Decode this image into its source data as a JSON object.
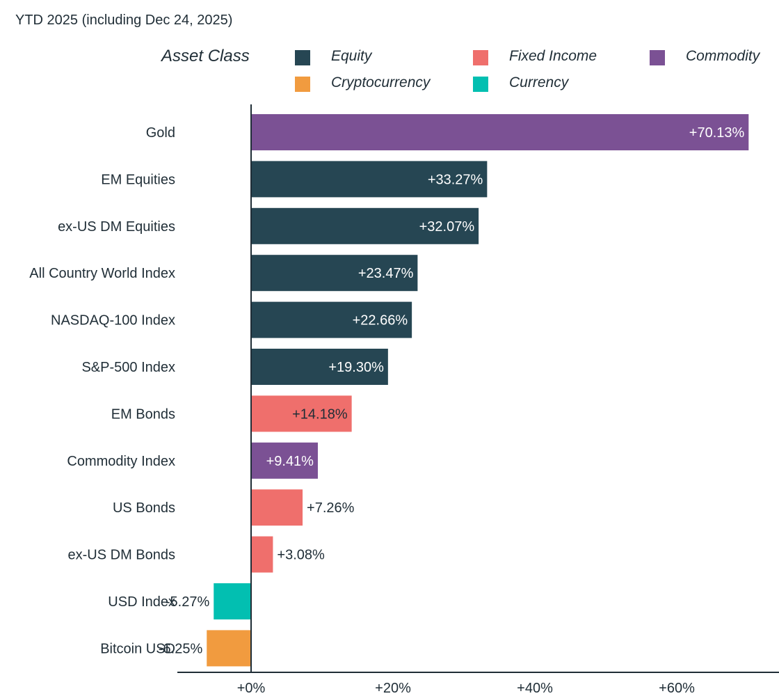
{
  "chart_data": {
    "type": "bar",
    "orientation": "horizontal",
    "title": "YTD 2025 (including Dec 24, 2025)",
    "xlabel": "",
    "ylabel": "",
    "xlim": [
      -10,
      74
    ],
    "xticks": [
      0,
      20,
      40,
      60
    ],
    "xtick_labels": [
      "+0%",
      "+20%",
      "+40%",
      "+60%"
    ],
    "grid": false,
    "legend": {
      "title": "Asset Class",
      "placement": "top",
      "entries": [
        {
          "name": "Equity",
          "color": "#264653"
        },
        {
          "name": "Fixed Income",
          "color": "#ef6f6c"
        },
        {
          "name": "Commodity",
          "color": "#7b5194"
        },
        {
          "name": "Cryptocurrency",
          "color": "#f19b3f"
        },
        {
          "name": "Currency",
          "color": "#02bfb1"
        }
      ]
    },
    "categories": [
      "Gold",
      "EM Equities",
      "ex-US DM Equities",
      "All Country World Index",
      "NASDAQ-100 Index",
      "S&P-500 Index",
      "EM Bonds",
      "Commodity Index",
      "US Bonds",
      "ex-US DM Bonds",
      "USD Index",
      "Bitcoin USD"
    ],
    "values": [
      70.13,
      33.27,
      32.07,
      23.47,
      22.66,
      19.3,
      14.18,
      9.41,
      7.26,
      3.08,
      -5.27,
      -6.25
    ],
    "labels": [
      "+70.13%",
      "+33.27%",
      "+32.07%",
      "+23.47%",
      "+22.66%",
      "+19.30%",
      "+14.18%",
      "+9.41%",
      "+7.26%",
      "+3.08%",
      "-5.27%",
      "-6.25%"
    ],
    "asset_class": [
      "Commodity",
      "Equity",
      "Equity",
      "Equity",
      "Equity",
      "Equity",
      "Fixed Income",
      "Commodity",
      "Fixed Income",
      "Fixed Income",
      "Currency",
      "Cryptocurrency"
    ]
  }
}
